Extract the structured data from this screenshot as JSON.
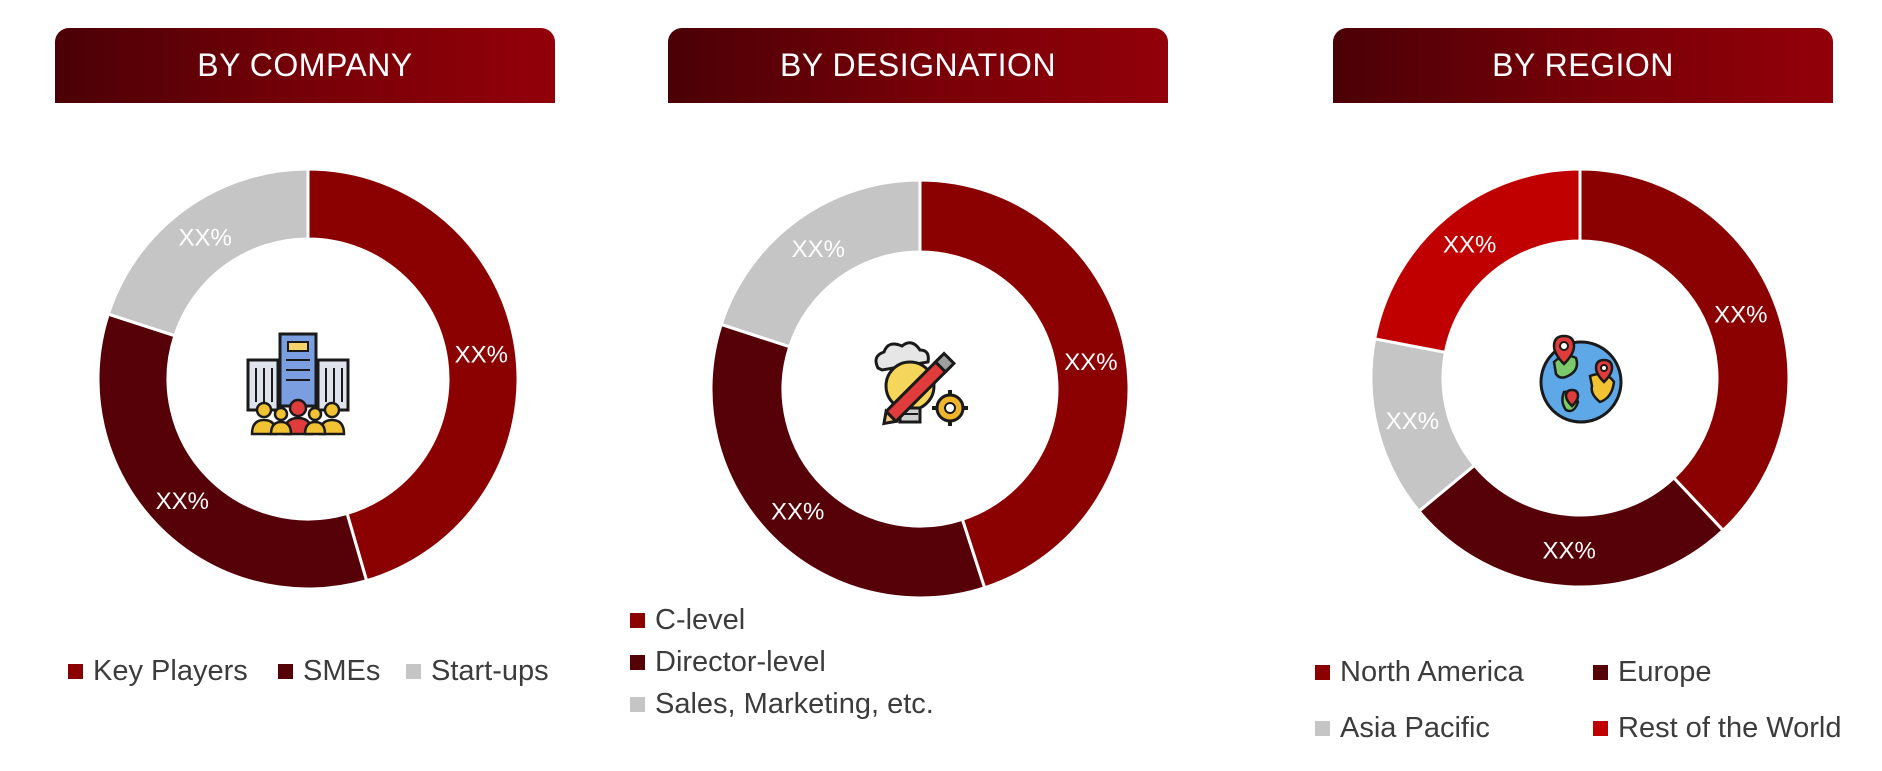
{
  "colors": {
    "dark_red": "#8b0000",
    "maroon": "#560008",
    "light_gray": "#c5c5c5",
    "bright_red": "#c00000",
    "header_gradient_start": "#4a0006",
    "header_gradient_end": "#920009"
  },
  "panels": [
    {
      "title": "BY COMPANY",
      "icon": "corporate-building-people-icon"
    },
    {
      "title": "BY DESIGNATION",
      "icon": "idea-bulb-pencil-gear-icon"
    },
    {
      "title": "BY REGION",
      "icon": "globe-map-pins-icon"
    }
  ],
  "chart_data": [
    {
      "type": "pie",
      "style": "donut",
      "title": "BY COMPANY",
      "slices": [
        {
          "name": "Key Players",
          "label": "XX%",
          "share": 0.455,
          "color": "#8b0000"
        },
        {
          "name": "SMEs",
          "label": "XX%",
          "share": 0.345,
          "color": "#560008"
        },
        {
          "name": "Start-ups",
          "label": "XX%",
          "share": 0.2,
          "color": "#c5c5c5"
        }
      ],
      "legend": [
        "Key Players",
        "SMEs",
        "Start-ups"
      ],
      "legend_placement": "bottom"
    },
    {
      "type": "pie",
      "style": "donut",
      "title": "BY DESIGNATION",
      "slices": [
        {
          "name": "C-level",
          "label": "XX%",
          "share": 0.45,
          "color": "#8b0000"
        },
        {
          "name": "Director-level",
          "label": "XX%",
          "share": 0.35,
          "color": "#560008"
        },
        {
          "name": "Sales, Marketing, etc.",
          "label": "XX%",
          "share": 0.2,
          "color": "#c5c5c5"
        }
      ],
      "legend": [
        "C-level",
        "Director-level",
        "Sales, Marketing, etc."
      ],
      "legend_placement": "bottom"
    },
    {
      "type": "pie",
      "style": "donut",
      "title": "BY REGION",
      "slices": [
        {
          "name": "North America",
          "label": "XX%",
          "share": 0.38,
          "color": "#8b0000"
        },
        {
          "name": "Europe",
          "label": "XX%",
          "share": 0.26,
          "color": "#560008"
        },
        {
          "name": "Asia Pacific",
          "label": "XX%",
          "share": 0.14,
          "color": "#c5c5c5"
        },
        {
          "name": "Rest of the World",
          "label": "XX%",
          "share": 0.22,
          "color": "#c00000"
        }
      ],
      "legend": [
        "North America",
        "Europe",
        "Asia Pacific",
        "Rest of the World"
      ],
      "legend_placement": "bottom"
    }
  ]
}
